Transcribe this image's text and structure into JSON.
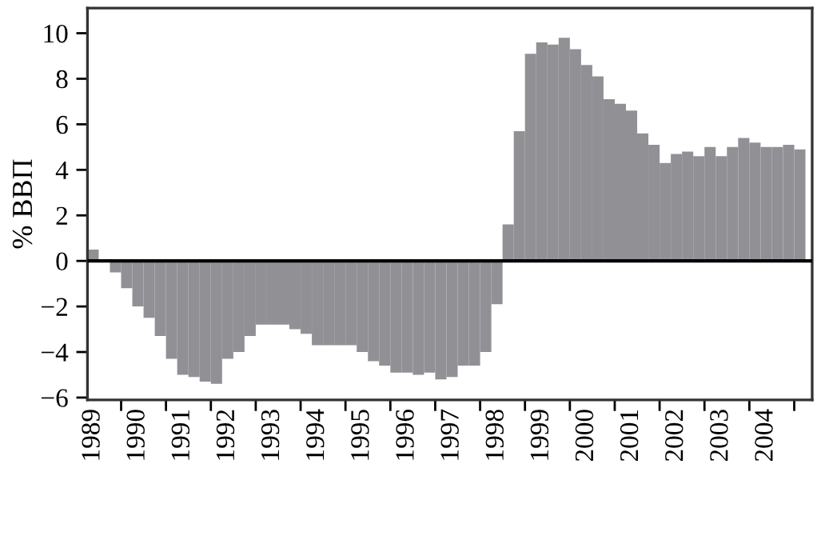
{
  "chart_data": {
    "type": "bar",
    "ylabel": "% ВВП",
    "categories": [
      "1989",
      null,
      null,
      null,
      "1990",
      null,
      null,
      null,
      "1991",
      null,
      null,
      null,
      "1992",
      null,
      null,
      null,
      "1993",
      null,
      null,
      null,
      "1994",
      null,
      null,
      null,
      "1995",
      null,
      null,
      null,
      "1996",
      null,
      null,
      null,
      "1997",
      null,
      null,
      null,
      "1998",
      null,
      null,
      null,
      "1999",
      null,
      null,
      null,
      "2000",
      null,
      null,
      null,
      "2001",
      null,
      null,
      null,
      "2002",
      null,
      null,
      null,
      "2003",
      null,
      null,
      null,
      "2004",
      null,
      null,
      null
    ],
    "values": [
      0.5,
      0,
      -0.5,
      -1.2,
      -2.0,
      -2.5,
      -3.3,
      -4.3,
      -5.0,
      -5.1,
      -5.3,
      -5.4,
      -4.3,
      -4.0,
      -3.3,
      -2.8,
      -2.8,
      -2.8,
      -3.0,
      -3.2,
      -3.7,
      -3.7,
      -3.7,
      -3.7,
      -4.0,
      -4.4,
      -4.6,
      -4.9,
      -4.9,
      -5.0,
      -4.9,
      -5.2,
      -5.1,
      -4.6,
      -4.6,
      -4.0,
      -1.9,
      1.6,
      5.7,
      9.1,
      9.6,
      9.5,
      9.8,
      9.3,
      8.6,
      8.1,
      7.1,
      6.9,
      6.6,
      5.6,
      5.1,
      4.3,
      4.7,
      4.8,
      4.6,
      5.0,
      4.6,
      5.0,
      5.4,
      5.2,
      5.0,
      5.0,
      5.1,
      4.9
    ],
    "color": "#909095",
    "ylim": [
      -6.1,
      11.1
    ],
    "yticks": [
      {
        "value": -6,
        "label": "−6"
      },
      {
        "value": -4,
        "label": "−4"
      },
      {
        "value": -2,
        "label": "−2"
      },
      0,
      2,
      4,
      6,
      8,
      10
    ],
    "ref_lines": [
      {
        "axis": "y",
        "value": 0,
        "color": "#000000"
      }
    ],
    "grid": false
  }
}
